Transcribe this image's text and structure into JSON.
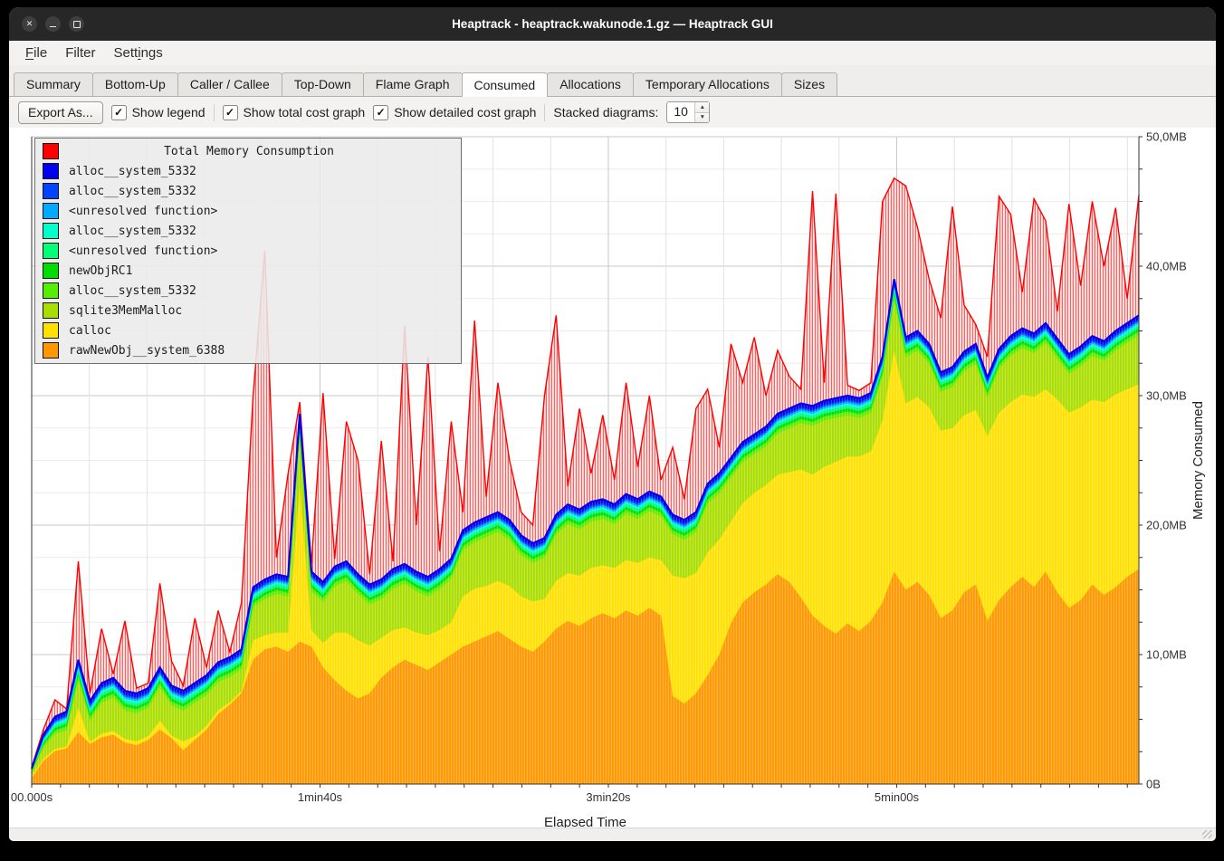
{
  "window": {
    "title": "Heaptrack - heaptrack.wakunode.1.gz — Heaptrack GUI",
    "controls": [
      {
        "name": "close",
        "glyph": "✕"
      },
      {
        "name": "minimize",
        "glyph": "–"
      },
      {
        "name": "maximize",
        "glyph": "▢"
      }
    ]
  },
  "menu": {
    "items": [
      {
        "label": "File",
        "underline_index": 0
      },
      {
        "label": "Filter",
        "underline_index": -1
      },
      {
        "label": "Settings",
        "underline_index": 4
      }
    ]
  },
  "tabs": {
    "active": "Consumed",
    "items": [
      {
        "label": "Summary"
      },
      {
        "label": "Bottom-Up"
      },
      {
        "label": "Caller / Callee"
      },
      {
        "label": "Top-Down"
      },
      {
        "label": "Flame Graph"
      },
      {
        "label": "Consumed"
      },
      {
        "label": "Allocations"
      },
      {
        "label": "Temporary Allocations"
      },
      {
        "label": "Sizes"
      }
    ]
  },
  "toolbar": {
    "export_label": "Export As...",
    "check_glyph": "✓",
    "checkboxes": [
      {
        "label": "Show legend",
        "checked": true
      },
      {
        "label": "Show total cost graph",
        "checked": true
      },
      {
        "label": "Show detailed cost graph",
        "checked": true
      }
    ],
    "stacked_label": "Stacked diagrams:",
    "stacked_value": "10",
    "spin_up": "▲",
    "spin_down": "▼"
  },
  "chart_data": {
    "type": "area",
    "stacked": true,
    "legend_title": "Total Memory Consumption",
    "x_axis": {
      "label": "Elapsed Time",
      "max_seconds": 384,
      "minor_tick_step_s": 10,
      "grid_step_s": 20,
      "major_ticks": [
        {
          "t": 0,
          "label": "00.000s"
        },
        {
          "t": 100,
          "label": "1min40s"
        },
        {
          "t": 200,
          "label": "3min20s"
        },
        {
          "t": 300,
          "label": "5min00s"
        }
      ]
    },
    "y_axis": {
      "label": "Memory Consumed",
      "max_mb": 50,
      "minor_tick_step_mb": 2.5,
      "grid_step_mb": 2.5,
      "major_ticks": [
        {
          "v": 50,
          "label": "50,0MB"
        },
        {
          "v": 40,
          "label": "40,0MB"
        },
        {
          "v": 30,
          "label": "30,0MB"
        },
        {
          "v": 20,
          "label": "20,0MB"
        },
        {
          "v": 10,
          "label": "10,0MB"
        },
        {
          "v": 0,
          "label": "0B"
        }
      ]
    },
    "sample_step_s": 4,
    "units": "MB",
    "series": [
      {
        "name": "rawNewObj__system_6388",
        "color": "#ff9800",
        "values": [
          0.5,
          2.0,
          3.0,
          3.2,
          4.0,
          3.4,
          3.6,
          3.8,
          3.2,
          3.0,
          3.4,
          4.2,
          3.6,
          2.6,
          3.4,
          4.2,
          5.4,
          6.2,
          7.4,
          9.6,
          10.4,
          10.6,
          10.2,
          11.0,
          10.6,
          9.0,
          8.0,
          7.2,
          6.6,
          7.0,
          8.2,
          9.0,
          9.6,
          9.2,
          8.8,
          9.4,
          10.0,
          10.6,
          11.0,
          11.4,
          11.8,
          11.2,
          10.6,
          10.2,
          11.0,
          12.0,
          12.6,
          12.2,
          12.8,
          13.2,
          12.8,
          13.4,
          13.0,
          13.6,
          13.0,
          6.8,
          6.2,
          7.0,
          8.4,
          10.0,
          12.4,
          14.0,
          14.8,
          15.4,
          16.2,
          15.6,
          14.4,
          13.0,
          12.2,
          11.6,
          12.4,
          11.8,
          12.6,
          14.0,
          16.4,
          15.0,
          15.6,
          14.6,
          12.8,
          13.4,
          14.8,
          15.4,
          12.6,
          14.2,
          15.2,
          16.0,
          15.2,
          16.4,
          14.8,
          13.6,
          14.2,
          15.4,
          14.6,
          15.2,
          16.0,
          16.6
        ]
      },
      {
        "name": "calloc",
        "color": "#ffe000",
        "values": [
          0.2,
          0.2,
          0.2,
          0.2,
          1.9,
          0.2,
          0.3,
          0.3,
          0.3,
          0.3,
          0.3,
          0.7,
          0.2,
          0.7,
          0.3,
          0.3,
          0.3,
          0.2,
          0.2,
          1.5,
          1.1,
          1.1,
          1.5,
          12.1,
          1.3,
          1.9,
          3.7,
          4.5,
          4.5,
          3.7,
          3.1,
          2.9,
          2.5,
          2.5,
          2.7,
          2.5,
          2.5,
          3.9,
          4.1,
          3.9,
          3.9,
          4.1,
          3.9,
          3.9,
          3.3,
          3.7,
          3.7,
          3.9,
          3.9,
          3.7,
          3.9,
          3.9,
          4.1,
          3.9,
          4.3,
          9.3,
          9.7,
          9.3,
          9.5,
          8.9,
          7.9,
          7.7,
          7.7,
          7.7,
          7.7,
          8.5,
          9.9,
          10.9,
          12.3,
          13.3,
          12.9,
          13.5,
          13.1,
          14.1,
          17.1,
          14.4,
          14.3,
          14.5,
          14.5,
          14.1,
          13.7,
          13.5,
          14.3,
          14.5,
          14.3,
          14.1,
          14.7,
          14.1,
          14.9,
          15.1,
          14.9,
          14.3,
          14.9,
          14.9,
          14.5,
          14.3
        ]
      },
      {
        "name": "sqlite3MemMalloc",
        "color": "#aadd00",
        "values": [
          0.3,
          1.0,
          1.4,
          1.5,
          2.2,
          1.8,
          2.4,
          2.6,
          2.2,
          2.2,
          2.2,
          2.6,
          2.4,
          2.4,
          2.6,
          2.4,
          2.2,
          2.0,
          1.8,
          2.6,
          2.8,
          3.0,
          2.8,
          4.0,
          3.0,
          3.2,
          3.6,
          4.0,
          3.6,
          3.2,
          3.0,
          3.2,
          3.4,
          3.2,
          3.0,
          3.2,
          3.4,
          3.6,
          3.6,
          3.8,
          3.8,
          3.6,
          3.2,
          3.0,
          3.2,
          3.6,
          3.8,
          3.6,
          3.6,
          3.6,
          3.4,
          3.6,
          3.4,
          3.6,
          3.4,
          3.2,
          3.0,
          3.2,
          3.8,
          3.6,
          3.4,
          3.2,
          3.0,
          3.0,
          3.2,
          3.4,
          3.6,
          3.8,
          3.6,
          3.4,
          3.2,
          3.0,
          3.0,
          3.4,
          4.0,
          3.6,
          3.6,
          3.4,
          3.0,
          3.2,
          3.4,
          3.6,
          3.0,
          3.4,
          3.6,
          3.6,
          3.4,
          3.6,
          3.2,
          3.0,
          3.2,
          3.4,
          3.2,
          3.4,
          3.6,
          3.8
        ]
      },
      {
        "name": "alloc__system_5332",
        "color": "#55ee00",
        "value": 0.28
      },
      {
        "name": "newObjRC1",
        "color": "#00dd00",
        "value": 0.22
      },
      {
        "name": "<unresolved function>",
        "color": "#00ff77",
        "value": 0.2
      },
      {
        "name": "alloc__system_5332",
        "color": "#00ffcc",
        "value": 0.2
      },
      {
        "name": "<unresolved function>",
        "color": "#00aaff",
        "value": 0.15
      },
      {
        "name": "alloc__system_5332",
        "color": "#0044ff",
        "value": 0.15
      },
      {
        "name": "alloc__system_5332",
        "color": "#0000ee",
        "value": 0.3
      }
    ],
    "stack_top_mb": [
      1.2,
      3.8,
      5.2,
      5.6,
      9.6,
      6.4,
      7.8,
      8.2,
      7.2,
      7.0,
      7.4,
      9.0,
      7.6,
      7.2,
      7.8,
      8.4,
      9.4,
      9.8,
      10.4,
      15.2,
      15.8,
      16.2,
      16.0,
      28.6,
      16.4,
      15.6,
      16.8,
      17.2,
      16.2,
      15.4,
      15.8,
      16.6,
      17.0,
      16.4,
      16.0,
      16.6,
      17.4,
      19.6,
      20.2,
      20.6,
      21.0,
      20.4,
      19.2,
      18.6,
      19.0,
      20.8,
      21.6,
      21.2,
      21.8,
      22.0,
      21.6,
      22.4,
      22.0,
      22.6,
      22.2,
      20.8,
      20.4,
      21.0,
      23.2,
      24.0,
      25.2,
      26.4,
      27.0,
      27.6,
      28.6,
      29.0,
      29.4,
      29.2,
      29.6,
      29.8,
      30.0,
      29.8,
      30.2,
      33.0,
      39.0,
      34.5,
      35.0,
      34.0,
      31.8,
      32.2,
      33.4,
      34.0,
      31.4,
      33.6,
      34.6,
      35.2,
      34.8,
      35.6,
      34.4,
      33.2,
      33.8,
      34.6,
      34.2,
      35.0,
      35.6,
      36.2
    ],
    "total_series": {
      "name": "Total Memory Consumption",
      "color": "#ff0000",
      "values": [
        1.3,
        4.2,
        6.5,
        5.8,
        17.2,
        7.0,
        12.0,
        8.5,
        12.6,
        7.4,
        7.8,
        15.5,
        9.5,
        7.6,
        12.8,
        9.0,
        13.4,
        10.2,
        14.0,
        30.0,
        41.2,
        17.5,
        24.0,
        29.5,
        17.0,
        30.2,
        17.4,
        28.0,
        25.0,
        16.2,
        26.5,
        17.2,
        35.4,
        20.0,
        33.0,
        18.0,
        28.0,
        21.0,
        35.8,
        22.2,
        31.0,
        25.0,
        21.0,
        20.0,
        30.0,
        36.2,
        23.0,
        29.0,
        24.0,
        28.5,
        23.5,
        31.0,
        24.5,
        30.0,
        23.5,
        26.0,
        22.0,
        29.0,
        30.5,
        26.0,
        34.0,
        31.0,
        34.5,
        30.0,
        33.5,
        31.5,
        30.5,
        45.8,
        31.0,
        45.6,
        30.8,
        30.4,
        31.0,
        45.0,
        46.8,
        46.2,
        43.0,
        39.0,
        36.0,
        44.6,
        37.0,
        35.5,
        33.0,
        45.4,
        44.0,
        38.0,
        45.2,
        43.5,
        36.5,
        44.8,
        38.5,
        45.0,
        40.0,
        44.5,
        37.5,
        45.5
      ]
    },
    "legend": [
      {
        "name": "Total Memory Consumption",
        "color": "#ff0000"
      },
      {
        "name": "alloc__system_5332",
        "color": "#0000ee"
      },
      {
        "name": "alloc__system_5332",
        "color": "#0044ff"
      },
      {
        "name": "<unresolved function>",
        "color": "#00aaff"
      },
      {
        "name": "alloc__system_5332",
        "color": "#00ffcc"
      },
      {
        "name": "<unresolved function>",
        "color": "#00ff77"
      },
      {
        "name": "newObjRC1",
        "color": "#00dd00"
      },
      {
        "name": "alloc__system_5332",
        "color": "#55ee00"
      },
      {
        "name": "sqlite3MemMalloc",
        "color": "#aadd00"
      },
      {
        "name": "calloc",
        "color": "#ffe000"
      },
      {
        "name": "rawNewObj__system_6388",
        "color": "#ff9800"
      }
    ]
  }
}
